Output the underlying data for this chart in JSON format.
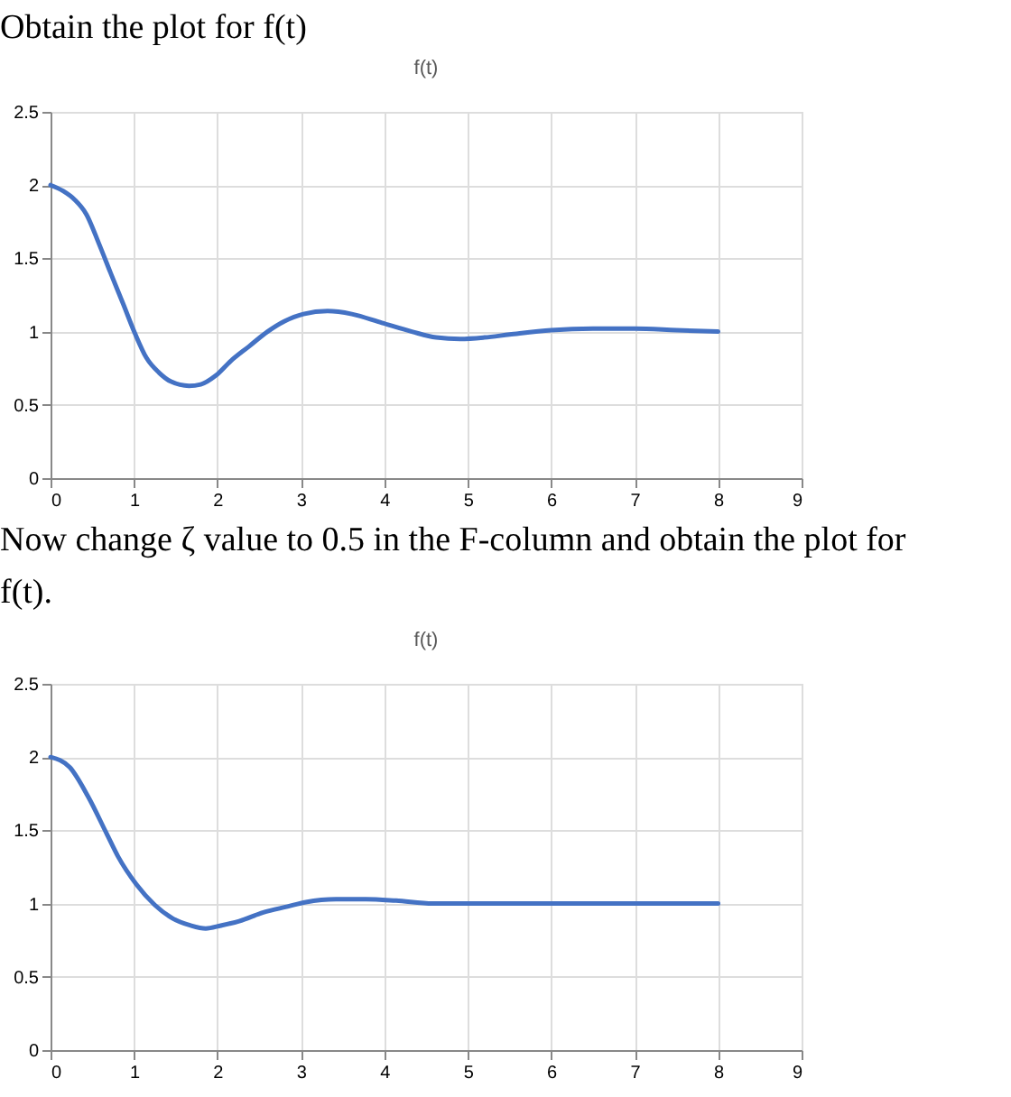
{
  "chart_data": [
    {
      "type": "line",
      "title": "f(t)",
      "annotations": [
        "Obtain the plot for f(t)"
      ],
      "x": [
        0,
        0.15,
        0.29,
        0.43,
        0.58,
        0.72,
        0.87,
        1.01,
        1.15,
        1.3,
        1.44,
        1.66,
        1.8,
        1.98,
        2.16,
        2.38,
        2.6,
        2.8,
        3.03,
        3.32,
        3.61,
        3.97,
        4.33,
        4.62,
        4.91,
        5.2,
        5.5,
        6,
        6.5,
        7,
        7.5,
        8
      ],
      "values": [
        2.0,
        1.96,
        1.9,
        1.8,
        1.6,
        1.4,
        1.19,
        0.99,
        0.82,
        0.72,
        0.66,
        0.63,
        0.64,
        0.7,
        0.8,
        0.9,
        1.0,
        1.07,
        1.12,
        1.14,
        1.12,
        1.06,
        1.0,
        0.96,
        0.95,
        0.96,
        0.98,
        1.01,
        1.02,
        1.02,
        1.01,
        1.0
      ],
      "color": "#4472c4",
      "xlim": [
        0,
        9
      ],
      "xticks": [
        0,
        1,
        2,
        3,
        4,
        5,
        6,
        7,
        8,
        9
      ],
      "ylim": [
        0,
        2.5
      ],
      "yticks": [
        0,
        0.5,
        1,
        1.5,
        2,
        2.5
      ],
      "grid": true
    },
    {
      "type": "line",
      "title": "f(t)",
      "annotations": [
        "Now change ζ value to 0.5 in the F-column and obtain the plot for f(t)."
      ],
      "x": [
        0,
        0.23,
        0.45,
        0.67,
        0.81,
        1.03,
        1.25,
        1.46,
        1.68,
        1.86,
        2.04,
        2.26,
        2.55,
        2.84,
        3.06,
        3.42,
        3.78,
        4.14,
        4.58,
        5,
        5.5,
        6,
        7,
        8
      ],
      "values": [
        2.0,
        1.93,
        1.73,
        1.48,
        1.32,
        1.13,
        0.99,
        0.9,
        0.85,
        0.83,
        0.85,
        0.88,
        0.94,
        0.98,
        1.01,
        1.03,
        1.03,
        1.02,
        1.0,
        1.0,
        1.0,
        1.0,
        1.0,
        1.0
      ],
      "color": "#4472c4",
      "xlim": [
        0,
        9
      ],
      "xticks": [
        0,
        1,
        2,
        3,
        4,
        5,
        6,
        7,
        8,
        9
      ],
      "ylim": [
        0,
        2.5
      ],
      "yticks": [
        0,
        0.5,
        1,
        1.5,
        2,
        2.5
      ],
      "grid": true
    }
  ]
}
